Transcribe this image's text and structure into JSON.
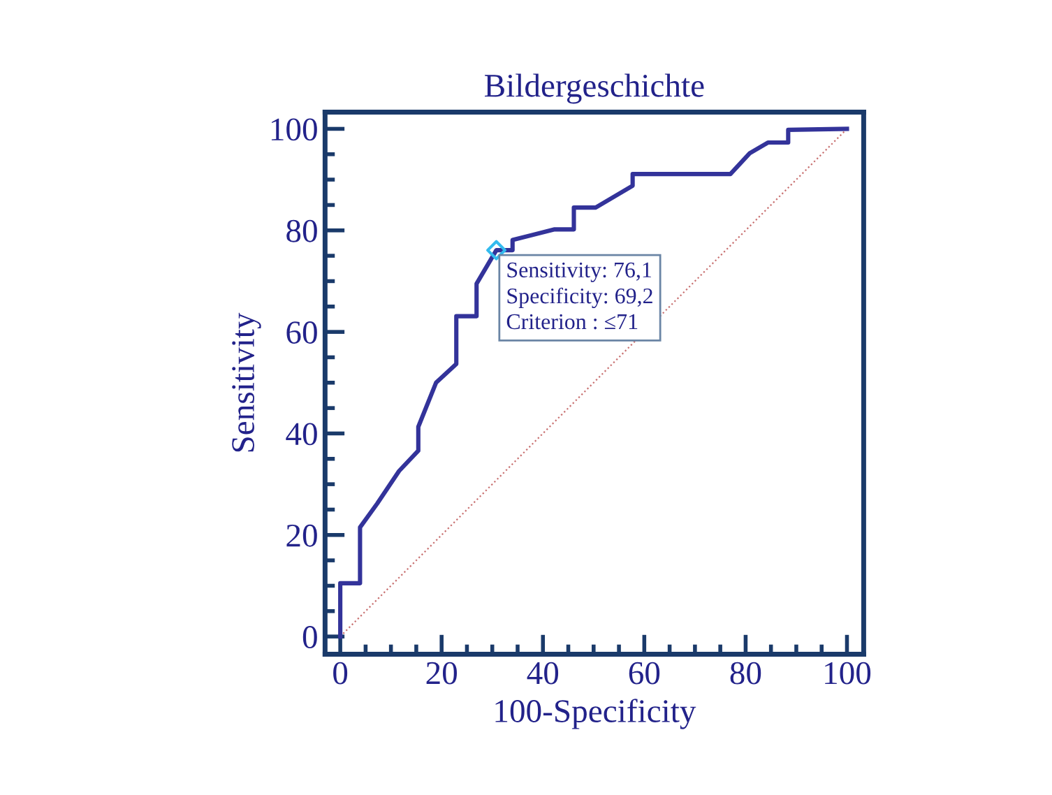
{
  "chart_data": {
    "type": "line",
    "title": "Bildergeschichte",
    "xlabel": "100-Specificity",
    "ylabel": "Sensitivity",
    "xlim": [
      -3,
      103.3
    ],
    "ylim": [
      -3.5,
      103.3
    ],
    "xticks": [
      0,
      {
        "value": 5,
        "label": null
      },
      {
        "value": 10,
        "label": null
      },
      {
        "value": 15,
        "label": null
      },
      20,
      {
        "value": 25,
        "label": null
      },
      {
        "value": 30,
        "label": null
      },
      {
        "value": 35,
        "label": null
      },
      40,
      {
        "value": 45,
        "label": null
      },
      {
        "value": 50,
        "label": null
      },
      {
        "value": 55,
        "label": null
      },
      60,
      {
        "value": 65,
        "label": null
      },
      {
        "value": 70,
        "label": null
      },
      {
        "value": 75,
        "label": null
      },
      80,
      {
        "value": 85,
        "label": null
      },
      {
        "value": 90,
        "label": null
      },
      {
        "value": 95,
        "label": null
      },
      100
    ],
    "yticks": [
      0,
      {
        "value": 5,
        "label": null
      },
      {
        "value": 10,
        "label": null
      },
      {
        "value": 15,
        "label": null
      },
      20,
      {
        "value": 25,
        "label": null
      },
      {
        "value": 30,
        "label": null
      },
      {
        "value": 35,
        "label": null
      },
      40,
      {
        "value": 45,
        "label": null
      },
      {
        "value": 50,
        "label": null
      },
      {
        "value": 55,
        "label": null
      },
      60,
      {
        "value": 65,
        "label": null
      },
      {
        "value": 70,
        "label": null
      },
      {
        "value": 75,
        "label": null
      },
      80,
      {
        "value": 85,
        "label": null
      },
      {
        "value": 90,
        "label": null
      },
      {
        "value": 95,
        "label": null
      },
      100
    ],
    "grid": false,
    "legend": false,
    "series": [
      {
        "color": "#c87070",
        "line_style": "dotted",
        "x": [
          0,
          100
        ],
        "values": [
          0,
          100
        ]
      },
      {
        "color": "#33339a",
        "line_style": "solid",
        "x": [
          0,
          0,
          3.9,
          3.9,
          7.3,
          11.6,
          15.4,
          15.4,
          18.9,
          22.9,
          22.9,
          26.9,
          26.9,
          30.8,
          34,
          34,
          42.3,
          46.1,
          46.1,
          50.4,
          57.7,
          57.7,
          77,
          80.8,
          84.4,
          88.4,
          88.4,
          100
        ],
        "values": [
          0,
          10.5,
          10.5,
          21.5,
          26.2,
          32.6,
          36.6,
          41.3,
          50,
          53.7,
          63.1,
          63.1,
          69.5,
          76.1,
          76.1,
          78.1,
          80.2,
          80.2,
          84.5,
          84.5,
          88.8,
          91.1,
          91.1,
          95.2,
          97.3,
          97.3,
          99.8,
          100
        ]
      },
      {
        "type": "scatter",
        "color": "#33bbee",
        "marker": "diamond",
        "x": [
          30.8
        ],
        "values": [
          76.1
        ]
      }
    ],
    "annotations": [
      {
        "text": "Sensitivity: 76,1\nSpecificity: 69,2\nCriterion : ≤71",
        "x": 30.8,
        "y": 76.1
      }
    ]
  }
}
